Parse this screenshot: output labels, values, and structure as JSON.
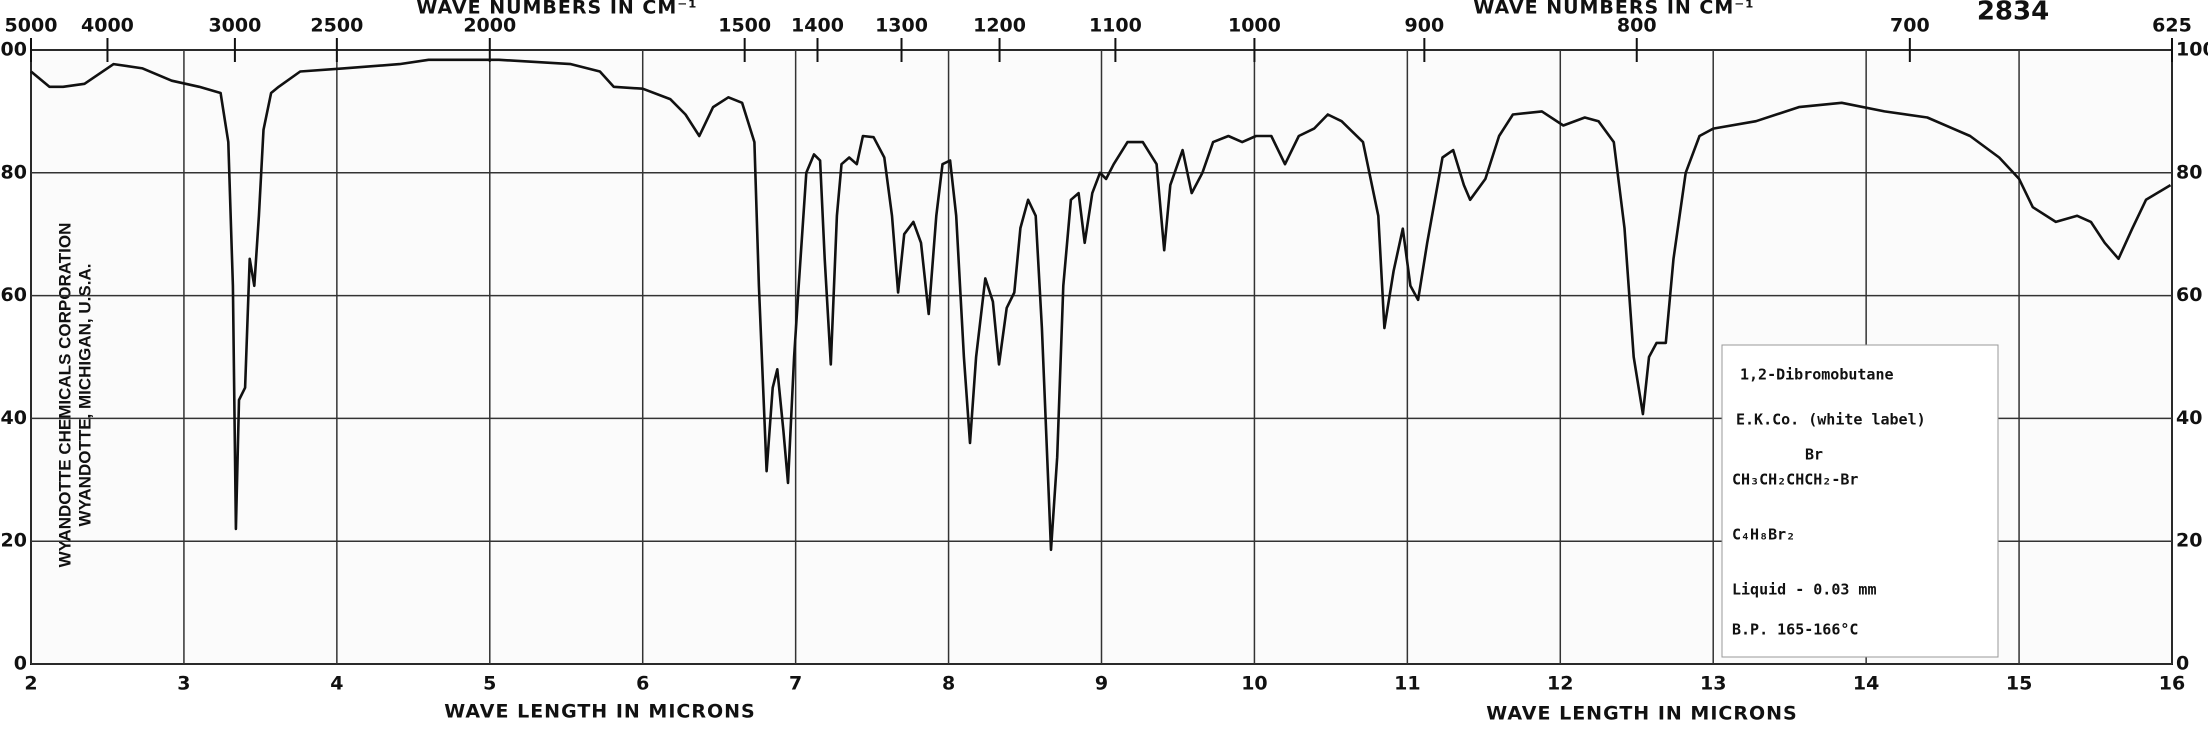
{
  "chart_data": {
    "type": "line",
    "spectrum_number": "2834",
    "x_label": "WAVE LENGTH IN MICRONS",
    "x2_label": "WAVE NUMBERS IN CM⁻¹",
    "source_lines": [
      "WYANDOTTE CHEMICALS CORPORATION",
      "WYANDOTTE, MICHIGAN, U.S.A."
    ],
    "annotation": [
      "1,2-Dibromobutane",
      "E.K.Co. (white label)",
      "Br",
      "CH₃CH₂CHCH₂-Br",
      "C₄H₈Br₂",
      "Liquid - 0.03 mm",
      "B.P. 165-166°C"
    ],
    "color": "#111111",
    "grid": true,
    "xlim": [
      2,
      16
    ],
    "ylim": [
      0,
      100
    ],
    "xticks": [
      2,
      3,
      4,
      5,
      6,
      7,
      8,
      9,
      10,
      11,
      12,
      13,
      14,
      15,
      16
    ],
    "yticks": [
      0,
      20,
      40,
      60,
      80,
      100
    ],
    "x2ticks": [
      5000,
      4000,
      3000,
      2500,
      2000,
      1500,
      1400,
      1300,
      1200,
      1100,
      1000,
      900,
      800,
      700,
      625
    ],
    "x": [
      2.0,
      2.12,
      2.21,
      2.35,
      2.54,
      2.73,
      2.92,
      3.1,
      3.24,
      3.29,
      3.32,
      3.34,
      3.36,
      3.4,
      3.43,
      3.46,
      3.49,
      3.52,
      3.57,
      3.62,
      3.76,
      4.04,
      4.41,
      4.6,
      5.06,
      5.53,
      5.72,
      5.81,
      6.0,
      6.18,
      6.28,
      6.37,
      6.46,
      6.56,
      6.65,
      6.73,
      6.76,
      6.81,
      6.85,
      6.88,
      6.92,
      6.95,
      6.99,
      7.02,
      7.07,
      7.12,
      7.16,
      7.19,
      7.23,
      7.27,
      7.3,
      7.35,
      7.4,
      7.44,
      7.51,
      7.58,
      7.63,
      7.67,
      7.71,
      7.77,
      7.82,
      7.87,
      7.92,
      7.96,
      8.01,
      8.05,
      8.1,
      8.14,
      8.18,
      8.24,
      8.29,
      8.33,
      8.38,
      8.43,
      8.47,
      8.52,
      8.57,
      8.61,
      8.67,
      8.71,
      8.75,
      8.8,
      8.85,
      8.89,
      8.94,
      8.99,
      9.03,
      9.08,
      9.17,
      9.27,
      9.36,
      9.41,
      9.45,
      9.53,
      9.59,
      9.66,
      9.73,
      9.83,
      9.92,
      10.01,
      10.11,
      10.2,
      10.29,
      10.39,
      10.48,
      10.57,
      10.71,
      10.81,
      10.85,
      10.91,
      10.97,
      11.02,
      11.07,
      11.13,
      11.23,
      11.3,
      11.37,
      11.41,
      11.51,
      11.6,
      11.69,
      11.88,
      12.02,
      12.16,
      12.25,
      12.35,
      12.42,
      12.48,
      12.54,
      12.58,
      12.63,
      12.69,
      12.74,
      12.82,
      12.91,
      13.0,
      13.28,
      13.56,
      13.84,
      14.12,
      14.4,
      14.68,
      14.87,
      15.0,
      15.09,
      15.24,
      15.38,
      15.47,
      15.56,
      15.65,
      15.74,
      15.83,
      15.99
    ],
    "values": [
      96.5,
      94,
      94,
      94.5,
      97.7,
      97,
      95,
      94,
      93,
      85,
      61.6,
      22,
      43,
      45,
      66,
      61.6,
      73,
      87,
      93,
      94,
      96.5,
      97,
      97.7,
      98.4,
      98.4,
      97.7,
      96.5,
      94,
      93.7,
      92,
      89.5,
      86,
      90.7,
      92.3,
      91.4,
      85,
      61.6,
      31.4,
      45,
      48,
      38,
      29.5,
      50,
      61.6,
      80,
      83,
      82,
      66,
      48.8,
      73,
      81.4,
      82.5,
      81.4,
      86,
      85.8,
      82.5,
      73,
      60.5,
      70,
      72,
      68.6,
      57,
      73,
      81.4,
      82,
      73,
      50,
      36,
      50,
      62.8,
      59,
      48.8,
      58,
      60.5,
      71,
      75.6,
      73,
      54.7,
      18.6,
      33.7,
      61.6,
      75.6,
      76.7,
      68.6,
      76.7,
      80,
      79,
      81.4,
      85,
      85,
      81.4,
      67.4,
      78,
      83.7,
      76.7,
      80,
      85,
      86,
      85,
      86,
      86,
      81.4,
      86,
      87.2,
      89.5,
      88.4,
      85,
      73,
      54.7,
      64,
      70.9,
      61.6,
      59.3,
      68.6,
      82.5,
      83.7,
      78,
      75.6,
      79,
      86,
      89.5,
      90,
      87.7,
      89,
      88.4,
      85,
      71,
      50,
      40.7,
      50,
      52.3,
      52.3,
      66,
      80,
      86,
      87.2,
      88.4,
      90.7,
      91.4,
      90,
      89,
      86,
      82.5,
      79,
      74.4,
      72,
      73,
      72,
      68.6,
      66,
      70.9,
      75.6,
      78
    ]
  }
}
